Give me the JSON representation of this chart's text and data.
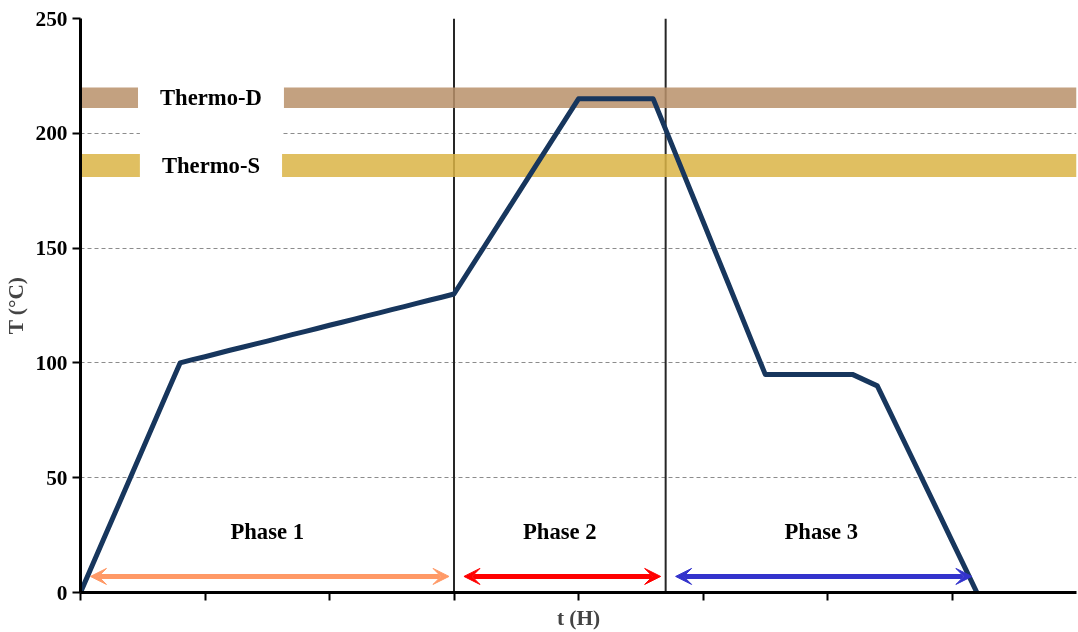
{
  "chart_data": {
    "type": "line",
    "xlabel": "t (H)",
    "ylabel": "T (°C)",
    "categories": [
      null,
      null,
      null,
      null,
      null,
      null,
      null,
      null,
      null,
      null,
      null,
      null,
      null,
      null,
      null,
      null,
      null,
      null,
      null,
      null,
      null,
      null,
      null,
      null,
      null,
      null,
      null,
      null,
      null,
      null,
      null,
      null,
      null,
      null,
      null,
      null,
      null,
      null,
      null,
      null,
      null,
      null,
      null,
      null,
      null,
      null,
      null,
      null,
      null,
      null,
      null,
      null,
      null,
      null,
      null,
      null,
      null,
      null,
      null,
      null,
      null,
      null,
      null,
      null,
      null,
      null,
      null,
      null,
      null,
      null,
      null,
      null,
      null,
      null,
      null,
      null,
      null,
      null,
      null,
      null,
      null
    ],
    "ylim": [
      0,
      250
    ],
    "yticks": [
      0,
      50,
      100,
      150,
      200,
      250
    ],
    "tick_labels": "y",
    "grid": "y",
    "line_style": "solid",
    "series": [
      {
        "color": "#17365d",
        "values": [
          0,
          12.5,
          25,
          37.5,
          50,
          62.5,
          75,
          87.5,
          100,
          101.4,
          102.7,
          104.1,
          105.5,
          106.8,
          108.2,
          109.5,
          110.9,
          112.3,
          113.6,
          115,
          116.4,
          117.7,
          119.1,
          120.5,
          121.8,
          123.2,
          124.5,
          125.9,
          127.3,
          128.6,
          130,
          138.5,
          147,
          155.5,
          164,
          172.5,
          181,
          189.5,
          198,
          206.5,
          215,
          215,
          215,
          215,
          215,
          215,
          215,
          201.7,
          188.3,
          175,
          161.7,
          148.3,
          135,
          121.7,
          108.3,
          95,
          95,
          95,
          95,
          95,
          95,
          95,
          95,
          92.5,
          90,
          78.8,
          67.5,
          56.3,
          45,
          33.8,
          22.5,
          11.3,
          0,
          null,
          null,
          null,
          null,
          null,
          null,
          null,
          null
        ]
      }
    ],
    "bands": [
      {
        "axis": "y",
        "from": 211,
        "to": 220,
        "label": "Thermo-D",
        "color": "#b8906a"
      },
      {
        "axis": "y",
        "from": 181,
        "to": 191,
        "label": "Thermo-S",
        "color": "#dbb445"
      }
    ],
    "annotations": [
      "Phase 1",
      "Phase 2",
      "Phase 3"
    ]
  }
}
